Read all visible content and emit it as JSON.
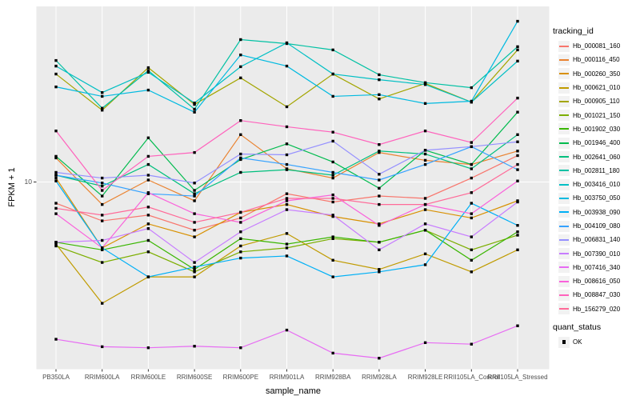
{
  "figure": {
    "panel_bg": "#EBEBEB",
    "grid_color": "#FFFFFF",
    "tick_color": "#333333",
    "tick_text_color": "#4D4D4D",
    "marker_color": "#000000"
  },
  "y_axis": {
    "title": "FPKM + 1",
    "tick_label": "10"
  },
  "x_axis": {
    "title": "sample_name"
  },
  "legend": {
    "tracking_title": "tracking_id",
    "quant_title": "quant_status",
    "quant_ok_label": "OK"
  },
  "chart_data": {
    "type": "line",
    "title": "",
    "xlabel": "sample_name",
    "ylabel": "FPKM + 1",
    "yscale": "log10",
    "y_breaks": [
      10
    ],
    "ylim": [
      1.6,
      55
    ],
    "grid": true,
    "legend_position": "right",
    "marker": "black-square",
    "quant_status_label": "OK",
    "categories": [
      "PB350LA",
      "RRIM600LA",
      "RRIM600LE",
      "RRIM600SE",
      "RRIM600PE",
      "RRIM901LA",
      "RRIM928BA",
      "RRIM928LA",
      "RRIM928LE",
      "RRII105LA_Control",
      "RRII105LA_Stressed"
    ],
    "series": [
      {
        "name": "Hb_000081_160",
        "color": "#F8766D",
        "values": [
          8.1,
          6.8,
          7.2,
          6.2,
          7.0,
          8.9,
          8.2,
          8.7,
          8.5,
          10.4,
          13.0
        ]
      },
      {
        "name": "Hb_000116_450",
        "color": "#EA8331",
        "values": [
          12.7,
          8.0,
          10.2,
          8.3,
          16.0,
          11.4,
          10.4,
          13.4,
          12.4,
          11.9,
          13.6
        ]
      },
      {
        "name": "Hb_000260_350",
        "color": "#D89000",
        "values": [
          10.4,
          5.2,
          6.6,
          5.8,
          7.4,
          8.0,
          7.1,
          6.6,
          7.6,
          7.0,
          8.3
        ]
      },
      {
        "name": "Hb_000621_010",
        "color": "#C09B00",
        "values": [
          5.4,
          3.0,
          3.9,
          3.9,
          5.3,
          6.0,
          4.6,
          4.2,
          4.9,
          4.1,
          5.1
        ]
      },
      {
        "name": "Hb_000905_110",
        "color": "#A3A500",
        "values": [
          29.2,
          20.4,
          31.1,
          21.6,
          28.1,
          21.1,
          29.2,
          22.8,
          26.6,
          22.1,
          37.1
        ]
      },
      {
        "name": "Hb_001021_150",
        "color": "#7CAE00",
        "values": [
          5.3,
          4.5,
          5.0,
          4.1,
          5.0,
          5.2,
          5.7,
          5.5,
          6.2,
          5.1,
          5.9
        ]
      },
      {
        "name": "Hb_001902_030",
        "color": "#39B600",
        "values": [
          5.5,
          5.1,
          5.6,
          4.2,
          5.7,
          5.4,
          5.8,
          5.5,
          6.2,
          4.6,
          6.1
        ]
      },
      {
        "name": "Hb_001946_400",
        "color": "#00BB4E",
        "values": [
          12.9,
          8.7,
          15.5,
          9.2,
          12.5,
          14.6,
          12.2,
          9.4,
          13.7,
          11.9,
          20.0
        ]
      },
      {
        "name": "Hb_002641_060",
        "color": "#00BF7D",
        "values": [
          10.7,
          9.6,
          11.9,
          8.9,
          11.0,
          11.3,
          10.7,
          13.6,
          13.2,
          11.4,
          16.0
        ]
      },
      {
        "name": "Hb_002811_180",
        "color": "#00C1A3",
        "values": [
          33.4,
          20.8,
          30.2,
          20.6,
          41.1,
          39.5,
          37.1,
          29.0,
          26.8,
          25.5,
          38.3
        ]
      },
      {
        "name": "Hb_003416_010",
        "color": "#00BFC4",
        "values": [
          31.6,
          24.3,
          29.7,
          21.9,
          31.4,
          39.8,
          29.2,
          27.6,
          26.3,
          22.1,
          33.2
        ]
      },
      {
        "name": "Hb_003750_050",
        "color": "#00BAE0",
        "values": [
          25.7,
          23.4,
          24.9,
          20.0,
          35.3,
          31.6,
          23.4,
          23.8,
          21.8,
          22.3,
          49.3
        ]
      },
      {
        "name": "Hb_003938_090",
        "color": "#00B0F6",
        "values": [
          10.1,
          5.2,
          3.9,
          4.3,
          4.7,
          4.8,
          3.9,
          4.1,
          4.4,
          8.1,
          6.5
        ]
      },
      {
        "name": "Hb_004109_080",
        "color": "#35A2FF",
        "values": [
          10.7,
          9.9,
          8.9,
          8.7,
          12.7,
          11.9,
          11.0,
          10.2,
          11.9,
          14.2,
          11.3
        ]
      },
      {
        "name": "Hb_006831_140",
        "color": "#9590FF",
        "values": [
          11.0,
          10.4,
          10.7,
          9.9,
          13.2,
          13.1,
          15.0,
          10.8,
          13.7,
          14.2,
          14.9
        ]
      },
      {
        "name": "Hb_007390_010",
        "color": "#C77CFF",
        "values": [
          5.5,
          5.6,
          6.3,
          4.5,
          6.1,
          7.6,
          7.2,
          5.1,
          6.6,
          5.8,
          8.2
        ]
      },
      {
        "name": "Hb_007416_340",
        "color": "#E76BF3",
        "values": [
          2.1,
          1.95,
          1.93,
          1.96,
          1.93,
          2.3,
          1.83,
          1.74,
          2.03,
          2.0,
          2.4
        ]
      },
      {
        "name": "Hb_008616_050",
        "color": "#FA62DB",
        "values": [
          7.3,
          5.2,
          9.0,
          7.3,
          6.7,
          8.3,
          8.8,
          6.5,
          8.0,
          7.3,
          10.1
        ]
      },
      {
        "name": "Hb_008847_030",
        "color": "#FF62BC",
        "values": [
          16.6,
          9.2,
          12.9,
          13.4,
          18.4,
          17.3,
          16.4,
          14.5,
          16.6,
          14.8,
          23.0
        ]
      },
      {
        "name": "Hb_156279_020",
        "color": "#FF6A98",
        "values": [
          7.7,
          7.2,
          7.8,
          6.7,
          7.4,
          8.5,
          8.5,
          8.0,
          8.0,
          9.0,
          11.9
        ]
      }
    ]
  }
}
